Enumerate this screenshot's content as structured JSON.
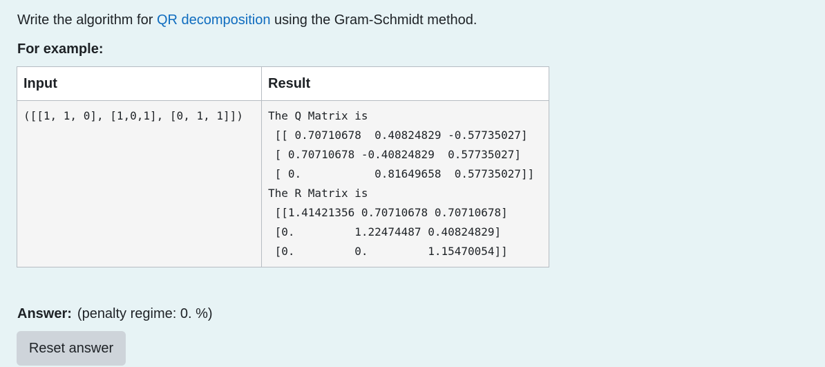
{
  "question": {
    "prefix": "Write the algorithm for ",
    "link_text": "QR decomposition",
    "suffix": " using the Gram-Schmidt method."
  },
  "examples": {
    "heading": "For example:",
    "columns": [
      "Input",
      "Result"
    ],
    "rows": [
      {
        "input": "([[1, 1, 0], [1,0,1], [0, 1, 1]])",
        "result": "The Q Matrix is\n [[ 0.70710678  0.40824829 -0.57735027]\n [ 0.70710678 -0.40824829  0.57735027]\n [ 0.           0.81649658  0.57735027]]\nThe R Matrix is\n [[1.41421356 0.70710678 0.70710678]\n [0.         1.22474487 0.40824829]\n [0.         0.         1.15470054]]"
      }
    ]
  },
  "answer": {
    "label": "Answer:",
    "penalty": "(penalty regime: 0. %)"
  },
  "buttons": {
    "reset_label": "Reset answer"
  }
}
